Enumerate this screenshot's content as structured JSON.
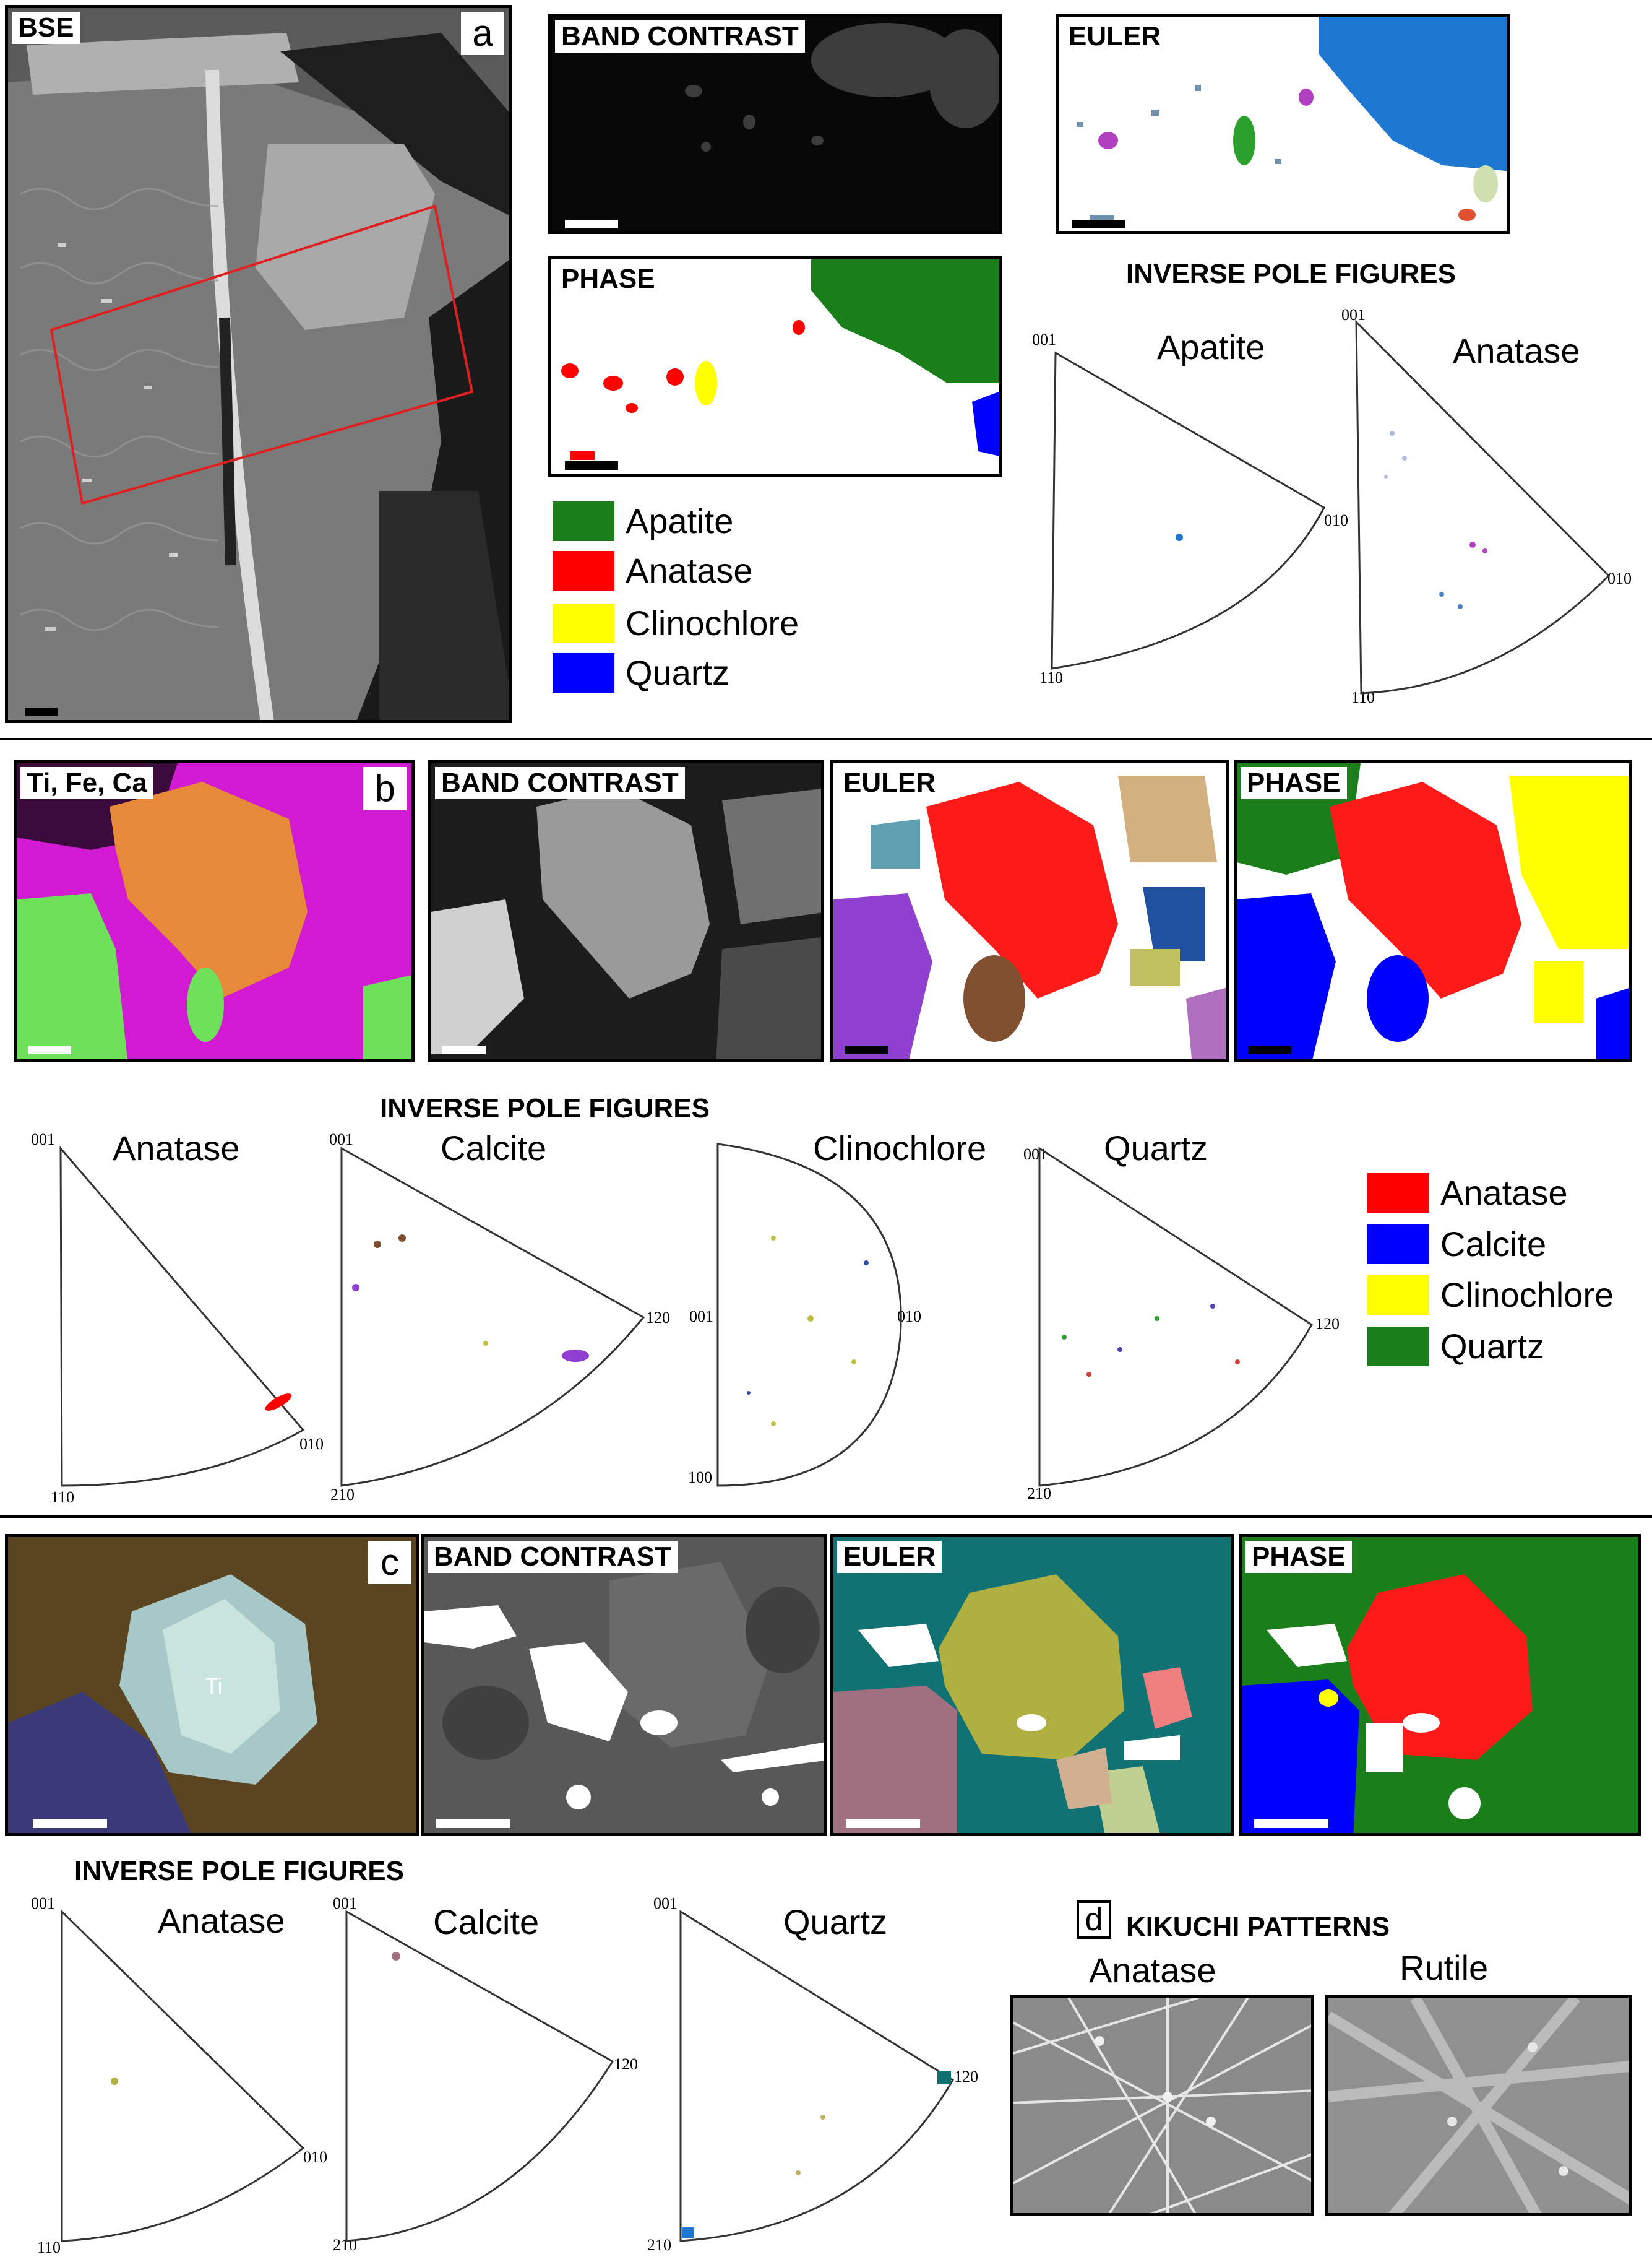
{
  "panel_a": {
    "letter": "a",
    "bse_label": "BSE",
    "band_contrast_label": "BAND CONTRAST",
    "euler_label": "EULER",
    "phase_label": "PHASE",
    "ipf_title": "INVERSE POLE FIGURES",
    "ipf": [
      {
        "name": "Apatite",
        "t1": "001",
        "t2": "010",
        "t3": "110"
      },
      {
        "name": "Anatase",
        "t1": "001",
        "t2": "010",
        "t3": "110"
      }
    ],
    "legend": [
      {
        "label": "Apatite",
        "color": "#1a7f1a"
      },
      {
        "label": "Anatase",
        "color": "#ff0000"
      },
      {
        "label": "Clinochlore",
        "color": "#ffff00"
      },
      {
        "label": "Quartz",
        "color": "#0000ff"
      }
    ]
  },
  "panel_b": {
    "letter": "b",
    "ele_label": "Ti, Fe, Ca",
    "band_contrast_label": "BAND CONTRAST",
    "euler_label": "EULER",
    "phase_label": "PHASE",
    "ipf_title": "INVERSE POLE FIGURES",
    "ipf": [
      {
        "name": "Anatase",
        "t1": "001",
        "t2": "010",
        "t3": "110"
      },
      {
        "name": "Calcite",
        "t1": "001",
        "t2": "120",
        "t3": "210"
      },
      {
        "name": "Clinochlore",
        "t1": "001",
        "t2": "010",
        "t3": "100",
        "t4": "001"
      },
      {
        "name": "Quartz",
        "t1": "001",
        "t2": "120",
        "t3": "210"
      }
    ],
    "legend": [
      {
        "label": "Anatase",
        "color": "#ff0000"
      },
      {
        "label": "Calcite",
        "color": "#0000ff"
      },
      {
        "label": "Clinochlore",
        "color": "#ffff00"
      },
      {
        "label": "Quartz",
        "color": "#1a7f1a"
      }
    ]
  },
  "panel_c": {
    "letter": "c",
    "ti_label": "Ti",
    "band_contrast_label": "BAND CONTRAST",
    "euler_label": "EULER",
    "phase_label": "PHASE",
    "ipf_title": "INVERSE POLE FIGURES",
    "ipf": [
      {
        "name": "Anatase",
        "t1": "001",
        "t2": "010",
        "t3": "110"
      },
      {
        "name": "Calcite",
        "t1": "001",
        "t2": "120",
        "t3": "210"
      },
      {
        "name": "Quartz",
        "t1": "001",
        "t2": "120",
        "t3": "210"
      }
    ]
  },
  "panel_d": {
    "letter": "d",
    "title": "KIKUCHI PATTERNS",
    "anatase": "Anatase",
    "rutile": "Rutile"
  }
}
